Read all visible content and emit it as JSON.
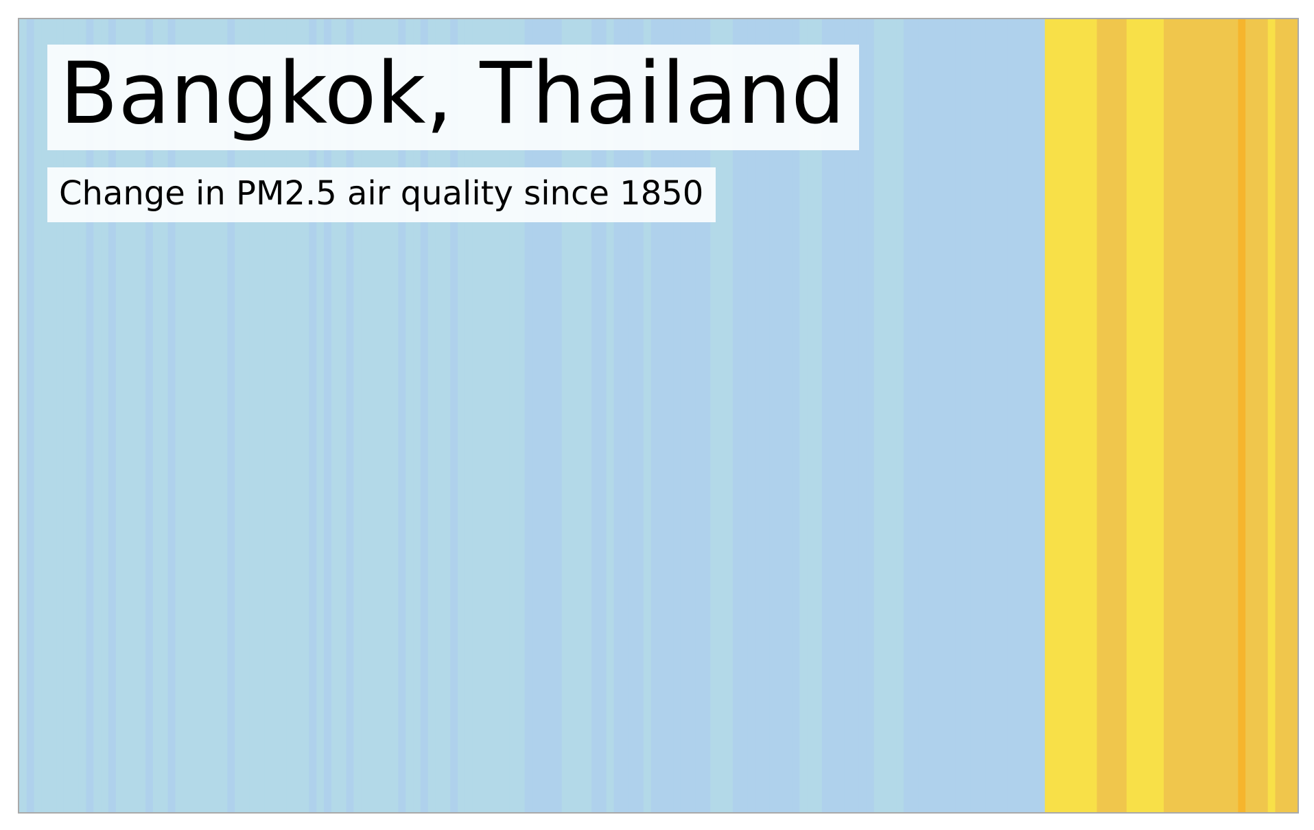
{
  "chart_data": {
    "type": "heatmap",
    "title": "Bangkok, Thailand",
    "subtitle": "Change in PM2.5 air quality since 1850",
    "xlabel": "",
    "ylabel": "",
    "grid": false,
    "legend": "none",
    "x_start": 1850,
    "x_end": 2021,
    "colors": {
      "c0": "#b3d9e8",
      "c1": "#afd1ec",
      "c2": "#b1dbe7",
      "c3": "#f8e048",
      "c4": "#f0c64c",
      "c5": "#f6b52d"
    },
    "stripes": [
      "c0",
      "c1",
      "c0",
      "c0",
      "c0",
      "c0",
      "c0",
      "c0",
      "c0",
      "c1",
      "c0",
      "c0",
      "c1",
      "c0",
      "c0",
      "c0",
      "c0",
      "c1",
      "c0",
      "c0",
      "c1",
      "c0",
      "c0",
      "c0",
      "c0",
      "c0",
      "c0",
      "c0",
      "c1",
      "c0",
      "c0",
      "c0",
      "c0",
      "c0",
      "c0",
      "c0",
      "c0",
      "c0",
      "c0",
      "c1",
      "c0",
      "c1",
      "c0",
      "c0",
      "c1",
      "c0",
      "c0",
      "c0",
      "c0",
      "c0",
      "c0",
      "c1",
      "c0",
      "c0",
      "c1",
      "c0",
      "c0",
      "c0",
      "c1",
      "c0",
      "c0",
      "c0",
      "c0",
      "c0",
      "c0",
      "c0",
      "c0",
      "c0",
      "c1",
      "c1",
      "c1",
      "c1",
      "c1",
      "c0",
      "c0",
      "c0",
      "c0",
      "c1",
      "c1",
      "c0",
      "c1",
      "c1",
      "c1",
      "c1",
      "c0",
      "c1",
      "c1",
      "c1",
      "c1",
      "c1",
      "c1",
      "c1",
      "c1",
      "c0",
      "c0",
      "c0",
      "c1",
      "c1",
      "c1",
      "c1",
      "c1",
      "c1",
      "c1",
      "c1",
      "c1",
      "c0",
      "c0",
      "c0",
      "c1",
      "c1",
      "c1",
      "c1",
      "c1",
      "c1",
      "c1",
      "c0",
      "c0",
      "c0",
      "c0",
      "c1",
      "c1",
      "c1",
      "c1",
      "c1",
      "c1",
      "c1",
      "c1",
      "c1",
      "c1",
      "c1",
      "c1",
      "c1",
      "c1",
      "c1",
      "c1",
      "c1",
      "c1",
      "c1",
      "c3",
      "c3",
      "c3",
      "c3",
      "c3",
      "c3",
      "c3",
      "c4",
      "c4",
      "c4",
      "c4",
      "c3",
      "c3",
      "c3",
      "c3",
      "c3",
      "c4",
      "c4",
      "c4",
      "c4",
      "c4",
      "c4",
      "c4",
      "c4",
      "c4",
      "c4",
      "c5",
      "c4",
      "c4",
      "c4",
      "c3",
      "c4",
      "c4",
      "c4"
    ]
  }
}
